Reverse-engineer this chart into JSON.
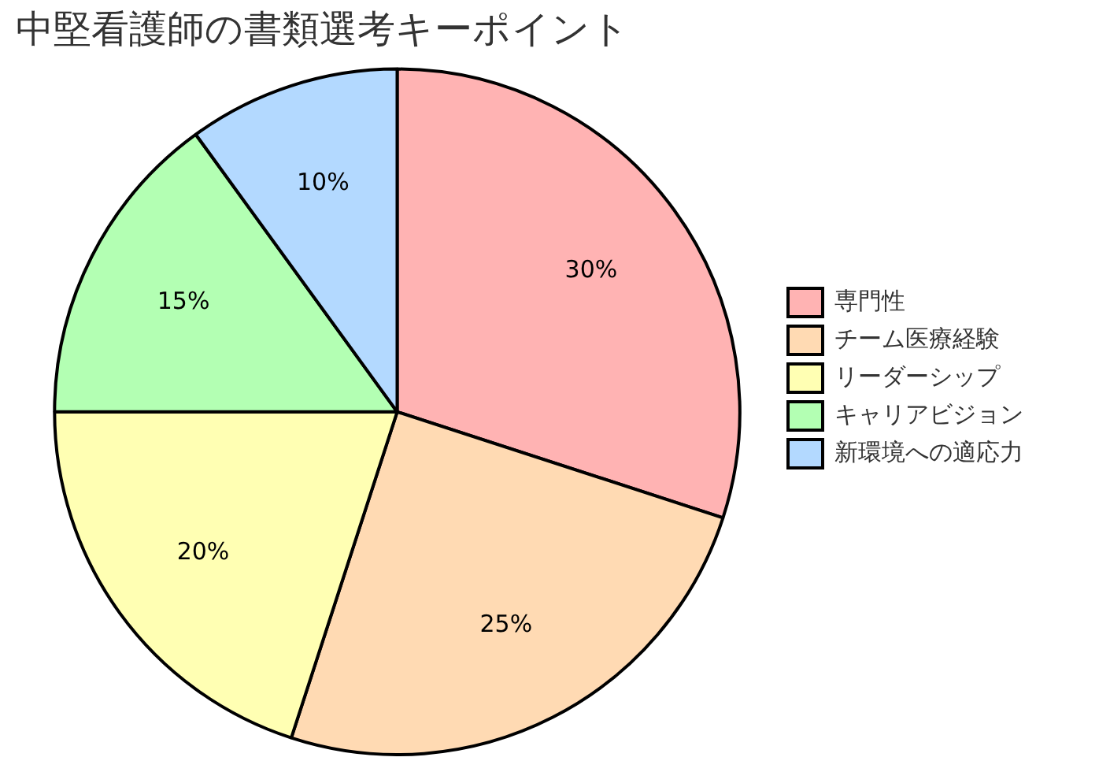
{
  "chart_data": {
    "type": "pie",
    "title": "中堅看護師の書類選考キーポイント",
    "categories": [
      "専門性",
      "チーム医療経験",
      "リーダーシップ",
      "キャリアビジョン",
      "新環境への適応力"
    ],
    "values": [
      30,
      25,
      20,
      15,
      10
    ],
    "colors": [
      "#ffb3b3",
      "#ffdab3",
      "#ffffb3",
      "#b3ffb3",
      "#b3d9ff"
    ],
    "value_labels": [
      "30%",
      "25%",
      "20%",
      "15%",
      "10%"
    ],
    "legend": "right"
  }
}
